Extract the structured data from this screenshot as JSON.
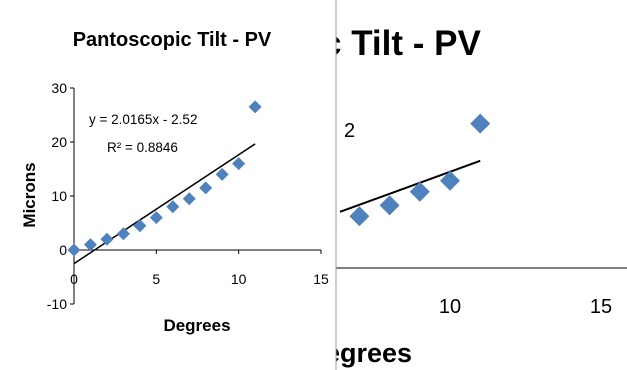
{
  "chart_data": [
    {
      "type": "scatter",
      "title": "Pantoscopic Tilt - PV",
      "xlabel": "Degrees",
      "ylabel": "Microns",
      "xlim": [
        0,
        15
      ],
      "ylim": [
        -10,
        30
      ],
      "x_ticks": [
        "0",
        "5",
        "10",
        "15"
      ],
      "y_ticks": [
        "-10",
        "0",
        "10",
        "20",
        "30"
      ],
      "series": [
        {
          "x": [
            0,
            1,
            2,
            3,
            4,
            5,
            6,
            7,
            8,
            9,
            10,
            11
          ],
          "y": [
            0,
            1,
            2,
            3,
            4.5,
            6,
            8,
            9.5,
            11.5,
            14,
            16,
            26.5
          ]
        }
      ],
      "trendline": {
        "slope": 2.0165,
        "intercept": -2.52,
        "equation": "y = 2.0165x - 2.52",
        "r2": "R² = 0.8846"
      },
      "marker_color": "#4F81BD",
      "grid": false
    },
    {
      "type": "scatter",
      "title": "c Tilt - PV",
      "xlabel": "egrees",
      "ylabel": "",
      "x_ticks": [
        "10",
        "15"
      ],
      "partial_label": "2",
      "series": [
        {
          "x": [
            7,
            8,
            9,
            10,
            11
          ],
          "y": [
            9.5,
            11.5,
            14,
            16,
            26.5
          ]
        }
      ],
      "trendline": {
        "slope": 2.0165,
        "intercept": -2.52
      },
      "marker_color": "#4F81BD"
    }
  ]
}
